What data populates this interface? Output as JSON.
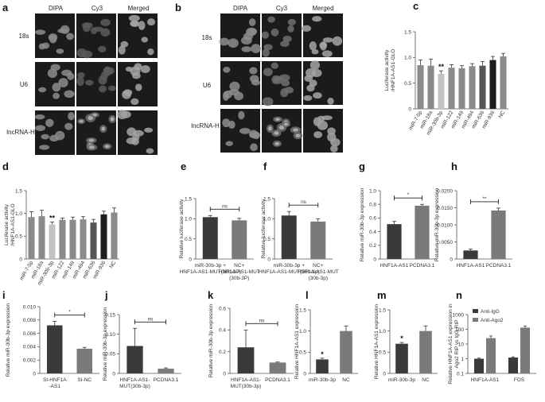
{
  "panels": {
    "a": {
      "letter": "a",
      "columns": [
        "DIPA",
        "Cy3",
        "Merged"
      ],
      "rows": [
        "18s",
        "U6",
        "lncRNA-H"
      ]
    },
    "b": {
      "letter": "b",
      "columns": [
        "DIPA",
        "Cy3",
        "Merged"
      ],
      "rows": [
        "18s",
        "U6",
        "lncRNA-H"
      ]
    }
  },
  "chart_data": [
    {
      "id": "c",
      "letter": "c",
      "type": "bar",
      "ylabel": "Luciferase activity /HNF1A-AS1-GLO",
      "ylim": [
        0,
        1.5
      ],
      "yticks": [
        "0",
        "0.5",
        "1.0",
        "1.5"
      ],
      "categories": [
        "miR-7-5p",
        "miR-18a",
        "miR-30b-3p",
        "miR-122",
        "miR-149",
        "miR-494",
        "miR-636",
        "miR-936",
        "NC"
      ],
      "values": [
        0.85,
        0.84,
        0.68,
        0.8,
        0.79,
        0.83,
        0.84,
        0.95,
        1.02
      ],
      "errors": [
        0.1,
        0.13,
        0.06,
        0.06,
        0.05,
        0.05,
        0.08,
        0.07,
        0.06
      ],
      "colors": [
        "#8a8a8a",
        "#8a8a8a",
        "#c2c2c2",
        "#8a8a8a",
        "#8a8a8a",
        "#8a8a8a",
        "#555555",
        "#1e1e1e",
        "#8a8a8a"
      ],
      "annotations": [
        {
          "index": 2,
          "text": "**"
        }
      ]
    },
    {
      "id": "d",
      "letter": "d",
      "type": "bar",
      "ylabel": "Luciferase activity /HNF1A-AS1-GLO",
      "ylim": [
        0,
        1.5
      ],
      "yticks": [
        "0",
        "0.5",
        "1.0",
        "1.5"
      ],
      "categories": [
        "miR-7-5p",
        "miR-18a",
        "miR-30b-3p",
        "miR-122",
        "miR-149",
        "miR-494",
        "miR-636",
        "miR-936",
        "NC"
      ],
      "values": [
        0.92,
        0.94,
        0.76,
        0.86,
        0.86,
        0.87,
        0.8,
        0.98,
        1.02
      ],
      "errors": [
        0.12,
        0.13,
        0.05,
        0.04,
        0.06,
        0.06,
        0.07,
        0.07,
        0.1
      ],
      "colors": [
        "#8a8a8a",
        "#8a8a8a",
        "#c2c2c2",
        "#8a8a8a",
        "#8a8a8a",
        "#8a8a8a",
        "#555555",
        "#1e1e1e",
        "#8a8a8a"
      ],
      "annotations": [
        {
          "index": 2,
          "text": "**"
        }
      ]
    },
    {
      "id": "e",
      "letter": "e",
      "type": "bar",
      "ylabel": "Relative luciferase activity",
      "ylim": [
        0,
        1.5
      ],
      "yticks": [
        "0",
        "0.5",
        "1.0",
        "1.5"
      ],
      "categories": [
        "miR-30b-3p +HNF1A-AS1-MUT(30b-3P)",
        "NC+HNF1A-AS1-MUT (30b-3P)"
      ],
      "values": [
        1.04,
        0.96
      ],
      "errors": [
        0.04,
        0.05
      ],
      "colors": [
        "#3a3a3a",
        "#7a7a7a"
      ],
      "bracket": {
        "from": 0,
        "to": 1,
        "text": "ns"
      }
    },
    {
      "id": "f",
      "letter": "f",
      "type": "bar",
      "ylabel": "Relative luciferase activity",
      "ylim": [
        0,
        1.5
      ],
      "yticks": [
        "0",
        "0.5",
        "1.0",
        "1.5"
      ],
      "categories": [
        "miR-30b-3p +HNF1A-AS1-MUT(30b-3p)",
        "NC+HNF1A-AS1-MUT (30b-3p)"
      ],
      "values": [
        1.08,
        0.93
      ],
      "errors": [
        0.1,
        0.07
      ],
      "colors": [
        "#3a3a3a",
        "#7a7a7a"
      ],
      "bracket": {
        "from": 0,
        "to": 1,
        "text": "ns"
      }
    },
    {
      "id": "g",
      "letter": "g",
      "type": "bar",
      "ylabel": "Relative miR-30b-3p expression",
      "ylim": [
        0,
        1.0
      ],
      "yticks": [
        "0",
        "0.2",
        "0.4",
        "0.6",
        "0.8",
        "1.0"
      ],
      "categories": [
        "HNF1A-AS1",
        "PCDNA3.1"
      ],
      "values": [
        0.51,
        0.78
      ],
      "errors": [
        0.04,
        0.02
      ],
      "colors": [
        "#3a3a3a",
        "#7a7a7a"
      ],
      "bracket": {
        "from": 0,
        "to": 1,
        "text": "*"
      }
    },
    {
      "id": "h",
      "letter": "h",
      "type": "bar",
      "ylabel": "Relative miR-30b-3p expression",
      "ylim": [
        0,
        0.02
      ],
      "yticks": [
        "0",
        "0.0050",
        "0.0100",
        "0.0150",
        "0.0200"
      ],
      "categories": [
        "HNF1A-AS1",
        "PCDNA3.1"
      ],
      "values": [
        0.0025,
        0.0142
      ],
      "errors": [
        0.0004,
        0.0007
      ],
      "colors": [
        "#3a3a3a",
        "#7a7a7a"
      ],
      "bracket": {
        "from": 0,
        "to": 1,
        "text": "**"
      }
    },
    {
      "id": "i",
      "letter": "i",
      "type": "bar",
      "ylabel": "Relative miR-30b-3p expression",
      "ylim": [
        0,
        0.01
      ],
      "yticks": [
        "0",
        "0.002",
        "0.004",
        "0.006",
        "0.008",
        "0.010"
      ],
      "categories": [
        "SI-HNF1A -AS1",
        "SI-NC"
      ],
      "values": [
        0.0072,
        0.0037
      ],
      "errors": [
        0.0006,
        0.0002
      ],
      "colors": [
        "#3a3a3a",
        "#7a7a7a"
      ],
      "bracket": {
        "from": 0,
        "to": 1,
        "text": "*"
      }
    },
    {
      "id": "j",
      "letter": "j",
      "type": "bar",
      "ylabel": "Relative miR-30b-3p expression",
      "ylim": [
        0,
        0.15
      ],
      "yticks": [
        "0",
        "0.05",
        "0.10",
        "0.15"
      ],
      "categories": [
        "HNF1A-AS1- MUT(30b-3p)",
        "PCDNA3.1"
      ],
      "values": [
        0.07,
        0.012
      ],
      "errors": [
        0.045,
        0.002
      ],
      "colors": [
        "#3a3a3a",
        "#7a7a7a"
      ],
      "bracket": {
        "from": 0,
        "to": 1,
        "text": "ns"
      }
    },
    {
      "id": "k",
      "letter": "k",
      "type": "bar",
      "ylabel": "Relative miR-30b-3p expression",
      "ylim": [
        0,
        0.6
      ],
      "yticks": [
        "0",
        "0.2",
        "0.4",
        "0.6"
      ],
      "categories": [
        "HNF1A-AS1- MUT(30b-3p)",
        "PCDNA3.1"
      ],
      "values": [
        0.24,
        0.1
      ],
      "errors": [
        0.16,
        0.005
      ],
      "colors": [
        "#3a3a3a",
        "#7a7a7a"
      ],
      "bracket": {
        "from": 0,
        "to": 1,
        "text": "ns"
      }
    },
    {
      "id": "l",
      "letter": "l",
      "type": "bar",
      "ylabel": "Relative HNF1A-AS1 expression",
      "ylim": [
        0,
        1.5
      ],
      "yticks": [
        "0",
        "0.5",
        "1.0",
        "1.5"
      ],
      "categories": [
        "miR-30b-3p",
        "NC"
      ],
      "values": [
        0.33,
        1.0
      ],
      "errors": [
        0.03,
        0.12
      ],
      "colors": [
        "#3a3a3a",
        "#7a7a7a"
      ],
      "annotations": [
        {
          "index": 0,
          "text": "*"
        }
      ]
    },
    {
      "id": "m",
      "letter": "m",
      "type": "bar",
      "ylabel": "Relative HNF1A-AS1 expression",
      "ylim": [
        0,
        1.5
      ],
      "yticks": [
        "0",
        "0.5",
        "1.0",
        "1.5"
      ],
      "categories": [
        "miR-30b-3p",
        "NC"
      ],
      "values": [
        0.7,
        1.0
      ],
      "errors": [
        0.03,
        0.12
      ],
      "colors": [
        "#3a3a3a",
        "#7a7a7a"
      ],
      "annotations": [
        {
          "index": 0,
          "text": "*"
        }
      ]
    },
    {
      "id": "n",
      "letter": "n",
      "type": "bar",
      "scale": "log",
      "ylabel": "Relative HNF1A-AS1 expression in Ago2 RIP vs IgG RIP",
      "ylim": [
        0.1,
        1000
      ],
      "yticks": [
        "0.1",
        "1",
        "10",
        "100",
        "1000"
      ],
      "categories": [
        "HNF1A-AS1",
        "FOS"
      ],
      "series": [
        {
          "name": "Anti-IgG",
          "values": [
            1.0,
            1.2
          ],
          "errors": [
            0.1,
            0.15
          ],
          "color": "#3a3a3a"
        },
        {
          "name": "Anti-Ago2",
          "values": [
            25,
            130
          ],
          "errors": [
            10,
            40
          ],
          "color": "#7a7a7a"
        }
      ]
    }
  ]
}
